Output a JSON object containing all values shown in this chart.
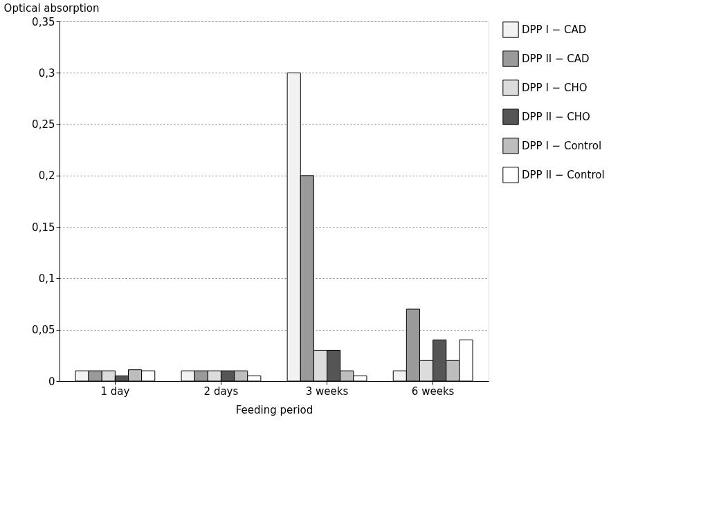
{
  "chart_data": {
    "type": "bar",
    "xlabel": "Feeding period",
    "ylabel": "Optical absorption",
    "categories": [
      "1 day",
      "2 days",
      "3 weeks",
      "6 weeks"
    ],
    "series": [
      {
        "name": "DPP I − CAD",
        "color": "#f2f2f2",
        "values": [
          0.01,
          0.01,
          0.3,
          0.01
        ]
      },
      {
        "name": "DPP II − CAD",
        "color": "#9a9a9a",
        "values": [
          0.01,
          0.01,
          0.2,
          0.07
        ]
      },
      {
        "name": "DPP I − CHO",
        "color": "#dcdcdc",
        "values": [
          0.01,
          0.01,
          0.03,
          0.02
        ]
      },
      {
        "name": "DPP II − CHO",
        "color": "#555555",
        "values": [
          0.005,
          0.01,
          0.03,
          0.04
        ]
      },
      {
        "name": "DPP I − Control",
        "color": "#bdbdbd",
        "values": [
          0.011,
          0.01,
          0.01,
          0.02
        ]
      },
      {
        "name": "DPP II − Control",
        "color": "#ffffff",
        "values": [
          0.01,
          0.005,
          0.005,
          0.04
        ]
      }
    ],
    "ylim": [
      0,
      0.35
    ],
    "yticks": [
      0,
      {
        "value": 0.05,
        "label": "0,05"
      },
      {
        "value": 0.1,
        "label": "0,1"
      },
      {
        "value": 0.15,
        "label": "0,15"
      },
      {
        "value": 0.2,
        "label": "0,2"
      },
      {
        "value": 0.25,
        "label": "0,25"
      },
      {
        "value": 0.3,
        "label": "0,3"
      },
      {
        "value": 0.35,
        "label": "0,35"
      }
    ],
    "grid": "y",
    "legend": "right"
  }
}
